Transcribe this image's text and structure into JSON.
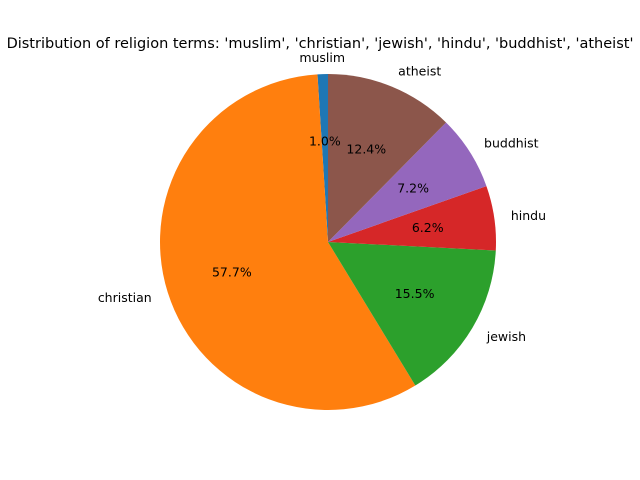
{
  "chart_data": {
    "type": "pie",
    "title": "Distribution of religion terms: 'muslim', 'christian', 'jewish', 'hindu', 'buddhist', 'atheist'",
    "categories": [
      "muslim",
      "christian",
      "jewish",
      "hindu",
      "buddhist",
      "atheist"
    ],
    "values": [
      1.0,
      57.7,
      15.5,
      6.2,
      7.2,
      12.4
    ],
    "percent_labels": [
      "1.0%",
      "57.7%",
      "15.5%",
      "6.2%",
      "7.2%",
      "12.4%"
    ],
    "colors": [
      "#1f77b4",
      "#ff7f0e",
      "#2ca02c",
      "#d62728",
      "#9467bd",
      "#8c564b"
    ],
    "start_angle_deg": 90,
    "direction": "counterclockwise"
  }
}
